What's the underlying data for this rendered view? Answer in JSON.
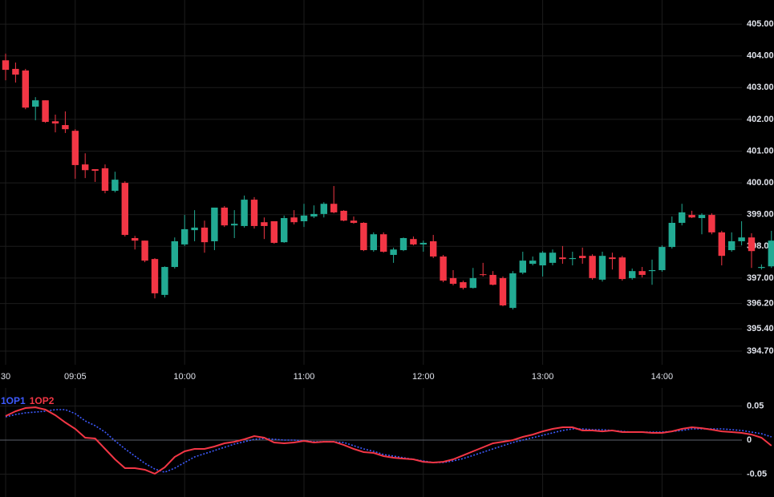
{
  "chart_data": [
    {
      "type": "candlestick",
      "categories": [
        "30",
        null,
        null,
        null,
        null,
        null,
        null,
        "09:05",
        null,
        null,
        null,
        null,
        null,
        null,
        null,
        null,
        null,
        null,
        "10:00",
        null,
        null,
        null,
        null,
        null,
        null,
        null,
        null,
        null,
        null,
        null,
        "11:00",
        null,
        null,
        null,
        null,
        null,
        null,
        null,
        null,
        null,
        null,
        null,
        "12:00",
        null,
        null,
        null,
        null,
        null,
        null,
        null,
        null,
        null,
        null,
        null,
        "13:00",
        null,
        null,
        null,
        null,
        null,
        null,
        null,
        null,
        null,
        null,
        null,
        "14:00",
        null,
        null,
        null,
        null,
        null,
        null,
        null,
        null,
        null,
        null,
        null
      ],
      "open": [
        403.86,
        403.59,
        403.54,
        402.4,
        402.6,
        401.94,
        401.82,
        401.64,
        400.58,
        400.43,
        400.46,
        399.75,
        400.0,
        398.26,
        398.18,
        397.6,
        396.47,
        397.35,
        398.06,
        398.51,
        398.59,
        398.16,
        399.22,
        398.66,
        398.64,
        399.47,
        398.76,
        398.79,
        398.13,
        398.91,
        398.79,
        398.94,
        399.02,
        399.34,
        399.12,
        398.81,
        398.74,
        397.88,
        398.38,
        397.73,
        397.88,
        398.23,
        398.06,
        398.16,
        397.68,
        397.0,
        396.87,
        396.69,
        397.12,
        397.1,
        397.0,
        396.06,
        397.17,
        397.45,
        397.4,
        397.48,
        397.65,
        397.6,
        397.7,
        397.7,
        396.95,
        397.65,
        397.65,
        397.0,
        397.22,
        397.22,
        397.25,
        397.98,
        398.74,
        398.99,
        398.89,
        398.99,
        398.44,
        397.88,
        398.16,
        398.28,
        397.32,
        397.37
      ],
      "high": [
        404.07,
        403.79,
        403.59,
        402.7,
        402.6,
        402.15,
        402.25,
        401.69,
        400.93,
        400.43,
        400.58,
        400.35,
        400.05,
        398.33,
        398.18,
        397.63,
        397.37,
        398.28,
        398.99,
        399.14,
        398.81,
        399.22,
        399.27,
        399.14,
        399.6,
        399.55,
        398.91,
        398.79,
        398.97,
        399.14,
        399.34,
        399.29,
        399.39,
        399.9,
        399.14,
        398.94,
        398.76,
        398.44,
        398.44,
        397.96,
        398.28,
        398.31,
        398.18,
        398.36,
        397.73,
        397.25,
        396.92,
        397.32,
        397.48,
        397.22,
        397.05,
        397.22,
        397.83,
        397.68,
        397.85,
        397.9,
        398.01,
        397.83,
        397.96,
        397.75,
        397.83,
        397.8,
        397.7,
        397.3,
        397.35,
        397.58,
        398.03,
        398.94,
        399.34,
        399.12,
        399.04,
        399.04,
        398.49,
        398.44,
        398.79,
        398.41,
        397.43,
        398.49
      ],
      "low": [
        403.23,
        403.16,
        402.32,
        401.97,
        401.89,
        401.59,
        401.57,
        400.13,
        400.15,
        400.03,
        399.67,
        399.7,
        398.31,
        397.9,
        397.5,
        396.36,
        396.39,
        397.3,
        398.01,
        398.16,
        397.8,
        397.88,
        398.61,
        398.26,
        398.59,
        398.56,
        398.23,
        398.08,
        398.11,
        398.69,
        398.61,
        398.89,
        398.91,
        399.04,
        398.79,
        398.71,
        397.85,
        397.83,
        397.8,
        397.48,
        397.85,
        398.03,
        397.83,
        397.63,
        396.87,
        396.77,
        396.64,
        396.67,
        397.05,
        396.77,
        396.11,
        396.01,
        397.12,
        397.4,
        397.05,
        397.4,
        397.45,
        397.4,
        397.45,
        396.95,
        396.89,
        397.27,
        396.92,
        396.95,
        397.02,
        396.79,
        397.2,
        397.93,
        398.66,
        398.89,
        398.38,
        398.38,
        397.4,
        397.83,
        398.03,
        397.32,
        397.27,
        397.32
      ],
      "close": [
        403.56,
        403.41,
        402.37,
        402.6,
        401.92,
        401.87,
        401.69,
        400.56,
        400.4,
        400.38,
        399.75,
        400.1,
        398.36,
        398.18,
        397.55,
        396.52,
        397.35,
        398.16,
        398.54,
        398.59,
        398.13,
        399.22,
        398.66,
        398.71,
        399.47,
        398.64,
        398.64,
        398.11,
        398.89,
        398.76,
        398.97,
        399.02,
        399.34,
        399.07,
        398.81,
        398.74,
        397.88,
        398.38,
        397.83,
        397.9,
        398.26,
        398.06,
        398.11,
        397.68,
        396.92,
        396.82,
        396.69,
        397.0,
        397.1,
        396.79,
        396.14,
        397.15,
        397.55,
        397.55,
        397.8,
        397.8,
        397.6,
        397.63,
        397.63,
        397.0,
        397.7,
        397.6,
        396.97,
        397.22,
        397.1,
        397.25,
        397.98,
        398.74,
        399.07,
        398.91,
        398.99,
        398.44,
        397.7,
        398.16,
        398.28,
        397.85,
        397.35,
        398.18
      ],
      "up_color": "#22ab94",
      "down_color": "#f23645",
      "ylim": [
        394.27,
        405.76
      ],
      "yticks": [
        {
          "value": 405,
          "label": "405.00"
        },
        {
          "value": 404,
          "label": "404.00"
        },
        {
          "value": 403,
          "label": "403.00"
        },
        {
          "value": 402,
          "label": "402.00"
        },
        {
          "value": 401,
          "label": "401.00"
        },
        {
          "value": 400,
          "label": "400.00"
        },
        {
          "value": 399,
          "label": "399.00"
        },
        {
          "value": 398,
          "label": "398.00"
        },
        {
          "value": 397,
          "label": "397.00"
        },
        {
          "value": 396.2,
          "label": "396.20"
        },
        {
          "value": 395.4,
          "label": "395.40"
        },
        {
          "value": 394.7,
          "label": "394.70"
        }
      ],
      "grid": true
    },
    {
      "type": "line",
      "series": [
        {
          "name": "1OP1",
          "color": "#3d5afe",
          "dash": true,
          "values": [
            0.0341,
            0.0376,
            0.04,
            0.0412,
            0.0424,
            0.0447,
            0.0447,
            0.0388,
            0.0282,
            0.0212,
            0.0118,
            -0.0012,
            -0.0129,
            -0.0235,
            -0.0341,
            -0.0424,
            -0.0471,
            -0.0412,
            -0.0329,
            -0.0247,
            -0.02,
            -0.0153,
            -0.0106,
            -0.0059,
            -0.0024,
            0.0012,
            0.0024,
            0.0012,
            0,
            0,
            -0.0012,
            -0.0024,
            -0.0024,
            -0.0024,
            -0.0035,
            -0.0082,
            -0.0129,
            -0.0165,
            -0.0212,
            -0.0235,
            -0.0259,
            -0.0282,
            -0.0306,
            -0.0329,
            -0.0329,
            -0.0306,
            -0.0271,
            -0.0224,
            -0.0176,
            -0.0129,
            -0.0082,
            -0.0035,
            0,
            0.0035,
            0.0071,
            0.0106,
            0.0141,
            0.0165,
            0.0165,
            0.0153,
            0.0153,
            0.0141,
            0.0129,
            0.0118,
            0.0118,
            0.0118,
            0.0118,
            0.0129,
            0.0141,
            0.0165,
            0.0165,
            0.0165,
            0.0165,
            0.0153,
            0.0141,
            0.0118,
            0.0094,
            0.0047
          ]
        },
        {
          "name": "1OP2",
          "color": "#f23645",
          "dash": false,
          "values": [
            0.0353,
            0.0424,
            0.0471,
            0.0482,
            0.0447,
            0.0365,
            0.0259,
            0.0165,
            0.0035,
            0.0024,
            -0.0129,
            -0.0282,
            -0.0412,
            -0.0412,
            -0.0435,
            -0.0494,
            -0.04,
            -0.0247,
            -0.0165,
            -0.0129,
            -0.0129,
            -0.0094,
            -0.0047,
            -0.0024,
            0.0012,
            0.0059,
            0.0035,
            -0.0035,
            -0.0047,
            -0.0035,
            -0.0012,
            -0.0035,
            -0.0024,
            -0.0024,
            -0.0071,
            -0.0129,
            -0.0176,
            -0.0188,
            -0.0235,
            -0.0259,
            -0.0271,
            -0.0282,
            -0.0318,
            -0.0329,
            -0.0318,
            -0.0282,
            -0.0224,
            -0.0165,
            -0.0106,
            -0.0047,
            -0.0024,
            0,
            0.0047,
            0.0082,
            0.0129,
            0.0165,
            0.0188,
            0.0188,
            0.0141,
            0.0141,
            0.0129,
            0.0141,
            0.0118,
            0.0118,
            0.0118,
            0.0106,
            0.0106,
            0.0129,
            0.0165,
            0.0188,
            0.0176,
            0.0153,
            0.0129,
            0.0118,
            0.0106,
            0.0082,
            0.0035,
            -0.0082
          ]
        }
      ],
      "ylim": [
        -0.0835,
        0.0765
      ],
      "yticks": [
        0.05,
        0,
        -0.05
      ],
      "grid": true
    }
  ]
}
